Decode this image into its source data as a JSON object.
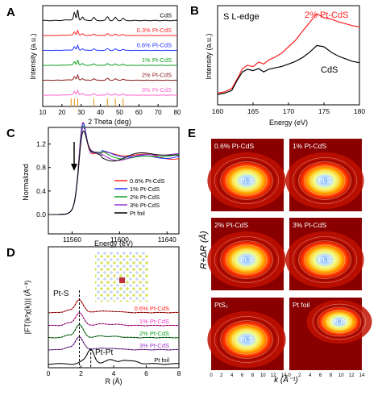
{
  "panels": {
    "A": "A",
    "B": "B",
    "C": "C",
    "D": "D",
    "E": "E"
  },
  "chart_data": [
    {
      "id": "A",
      "type": "line",
      "title": "",
      "xlabel": "2 Theta (deg)",
      "ylabel": "Intensity (a.u.)",
      "xlim": [
        10,
        80
      ],
      "xticks": [
        "10",
        "20",
        "30",
        "40",
        "50",
        "60",
        "70",
        "80"
      ],
      "series": [
        {
          "name": "CdS",
          "color": "#000000",
          "offset": 5
        },
        {
          "name": "0.3% Pt-CdS",
          "color": "#ff2020",
          "offset": 4
        },
        {
          "name": "0.6% Pt-CdS",
          "color": "#2030ff",
          "offset": 3
        },
        {
          "name": "1% Pt-CdS",
          "color": "#10a020",
          "offset": 2
        },
        {
          "name": "2% Pt-CdS",
          "color": "#8b1a1a",
          "offset": 1
        },
        {
          "name": "3% Pt-CdS",
          "color": "#ff66cc",
          "offset": 0
        }
      ],
      "peaks_2theta": [
        26.5,
        28.2,
        30.7,
        36.6,
        43.7,
        47.8,
        51.8,
        52.8
      ],
      "reference_sticks": [
        24.8,
        26.5,
        28.2,
        36.6,
        43.7,
        47.8,
        51.8
      ]
    },
    {
      "id": "B",
      "type": "line",
      "annotation": "S L-edge",
      "xlabel": "Energy (eV)",
      "ylabel": "Intensity (a.u.)",
      "xlim": [
        160,
        180
      ],
      "xticks": [
        "160",
        "165",
        "170",
        "175",
        "180"
      ],
      "series": [
        {
          "name": "2% Pt-CdS",
          "color": "#ff2020",
          "x": [
            160,
            161,
            162,
            162.8,
            163.5,
            164.2,
            165,
            165.8,
            166.5,
            167.2,
            168,
            169,
            170,
            171,
            172,
            173,
            174,
            175,
            176,
            177,
            178,
            179,
            180
          ],
          "y": [
            0.08,
            0.1,
            0.15,
            0.3,
            0.45,
            0.5,
            0.48,
            0.55,
            0.52,
            0.58,
            0.62,
            0.68,
            0.78,
            0.88,
            1.02,
            1.15,
            1.28,
            1.22,
            1.2,
            1.16,
            1.13,
            1.1,
            1.08
          ]
        },
        {
          "name": "CdS",
          "color": "#000000",
          "x": [
            160,
            161,
            162,
            162.8,
            163.5,
            164.2,
            165,
            165.8,
            166.5,
            167.2,
            168,
            169,
            170,
            171,
            172,
            173,
            174,
            175,
            176,
            177,
            178,
            179,
            180
          ],
          "y": [
            0.06,
            0.08,
            0.12,
            0.28,
            0.4,
            0.44,
            0.42,
            0.45,
            0.4,
            0.44,
            0.46,
            0.48,
            0.52,
            0.56,
            0.62,
            0.7,
            0.8,
            0.78,
            0.7,
            0.64,
            0.6,
            0.56,
            0.54
          ]
        }
      ]
    },
    {
      "id": "C",
      "type": "line",
      "xlabel": "Energy (eV)",
      "ylabel": "Normalized",
      "xlim": [
        11540,
        11650
      ],
      "ylim": [
        0,
        1.4
      ],
      "xticks": [
        "11560",
        "11600",
        "11640"
      ],
      "yticks": [
        "0.0",
        "0.4",
        "0.8",
        "1.2"
      ],
      "series": [
        {
          "name": "0.6% Pt-CdS",
          "color": "#ff2020"
        },
        {
          "name": "1% Pt-CdS",
          "color": "#2030ff"
        },
        {
          "name": "2% Pt-CdS",
          "color": "#10a020"
        },
        {
          "name": "3% Pt-CdS",
          "color": "#9932cc"
        },
        {
          "name": "Pt foil",
          "color": "#000000"
        }
      ],
      "edge_eV": 11565
    },
    {
      "id": "D",
      "type": "line",
      "xlabel": "R (Å)",
      "ylabel": "|FT(k²χ(k))| (Å⁻³)",
      "xlim": [
        0,
        8
      ],
      "xticks": [
        "0",
        "2",
        "4",
        "6",
        "8"
      ],
      "annotations": [
        "Pt-S",
        "Pt-Pt"
      ],
      "series": [
        {
          "name": "0.6% Pt-CdS",
          "color": "#ff2020"
        },
        {
          "name": "1% Pt-CdS",
          "color": "#ff33cc"
        },
        {
          "name": "2% Pt-CdS",
          "color": "#10a020"
        },
        {
          "name": "3% Pt-CdS",
          "color": "#9932cc"
        },
        {
          "name": "Pt foil",
          "color": "#000000"
        }
      ],
      "peak_R": {
        "Pt-S": 1.9,
        "Pt-Pt": 2.6
      }
    },
    {
      "id": "E",
      "type": "heatmap",
      "xlabel": "k (Å⁻¹)",
      "ylabel": "R+ΔR (Å)",
      "xticks": [
        "0",
        "2",
        "4",
        "6",
        "8",
        "10",
        "12",
        "14"
      ],
      "maps": [
        {
          "name": "0.6% Pt-CdS",
          "peak": "Pt-S"
        },
        {
          "name": "1% Pt-CdS",
          "peak": "Pt-S"
        },
        {
          "name": "2% Pt-CdS",
          "peak": "Pt-S"
        },
        {
          "name": "3% Pt-CdS",
          "peak": "Pt-S"
        },
        {
          "name": "PtS₂",
          "peak": "Pt-S"
        },
        {
          "name": "Pt foil",
          "peak": "Pt-Pt"
        }
      ]
    }
  ]
}
